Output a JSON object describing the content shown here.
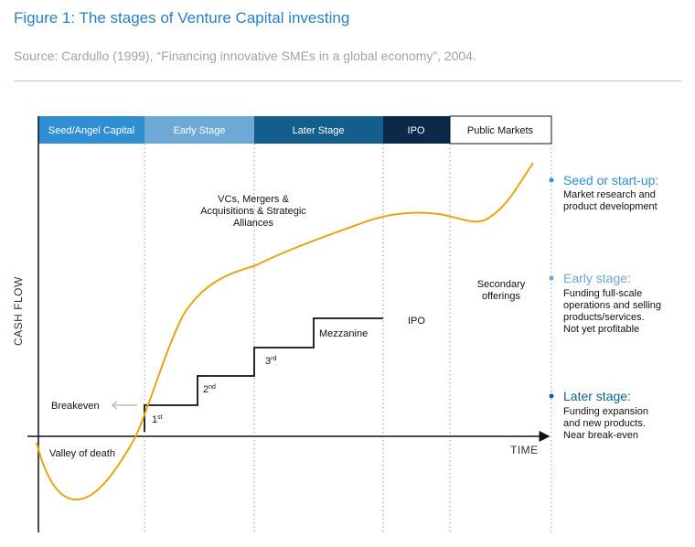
{
  "figure": {
    "title": "Figure 1: The stages of Venture Capital investing",
    "source": "Source: Cardullo (1999), “Financing innovative SMEs in a global economy”, 2004."
  },
  "stage_bar": [
    {
      "label": "Seed/Angel Capital",
      "color": "#2e8fd3",
      "text_color": "#ffffff"
    },
    {
      "label": "Early Stage",
      "color": "#6ea8d4",
      "text_color": "#ffffff"
    },
    {
      "label": "Later Stage",
      "color": "#135e8c",
      "text_color": "#ffffff"
    },
    {
      "label": "IPO",
      "color": "#0b2a4a",
      "text_color": "#ffffff"
    },
    {
      "label": "Public Markets",
      "color": "#ffffff",
      "text_color": "#111111"
    }
  ],
  "axes": {
    "y_label": "CASH FLOW",
    "x_label": "TIME"
  },
  "curve_labels": {
    "vcs": [
      "VCs, Mergers &",
      "Acquisitions & Strategic",
      "Alliances"
    ],
    "secondary": [
      "Secondary",
      "offerings"
    ],
    "breakeven": "Breakeven",
    "valley": "Valley of death"
  },
  "steps": {
    "first": {
      "base": "1",
      "sup": "st"
    },
    "second": {
      "base": "2",
      "sup": "nd"
    },
    "third": {
      "base": "3",
      "sup": "rd"
    },
    "mezzanine": "Mezzanine",
    "ipo": "IPO"
  },
  "side_notes": [
    {
      "heading": "Seed or start-up:",
      "lines": [
        "Market research and",
        "product development"
      ],
      "color": "#2e8fd3"
    },
    {
      "heading": "Early stage:",
      "lines": [
        "Funding full-scale",
        "operations and selling",
        "products/services.",
        "Not yet profitable"
      ],
      "color": "#6ea8d4"
    },
    {
      "heading": "Later stage:",
      "lines": [
        "Funding expansion",
        "and new products.",
        "Near break-even"
      ],
      "color": "#135e8c"
    }
  ],
  "colors": {
    "curve": "#e3a712",
    "axis": "#111111"
  }
}
